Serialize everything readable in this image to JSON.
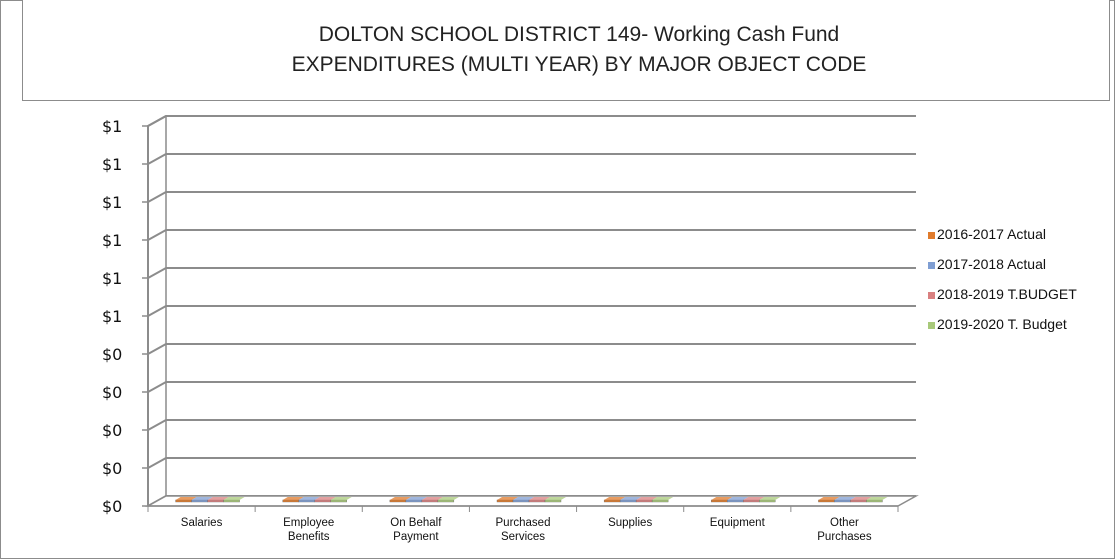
{
  "chart_data": {
    "type": "bar",
    "title": "DOLTON SCHOOL DISTRICT 149- Working Cash Fund",
    "subtitle": "EXPENDITURES (MULTI YEAR) BY MAJOR OBJECT CODE",
    "categories": [
      [
        "Salaries"
      ],
      [
        "Employee",
        "Benefits"
      ],
      [
        "On Behalf",
        "Payment"
      ],
      [
        "Purchased",
        "Services"
      ],
      [
        "Supplies"
      ],
      [
        "Equipment"
      ],
      [
        "Other",
        "Purchases"
      ]
    ],
    "y_tick_labels": [
      "$1",
      "$1",
      "$1",
      "$1",
      "$1",
      "$1",
      "$0",
      "$0",
      "$0",
      "$0",
      "$0"
    ],
    "ylim": [
      0,
      1
    ],
    "grid": true,
    "legend_position": "right",
    "three_d": true,
    "series": [
      {
        "name": "2016-2017 Actual",
        "color": "#e07b2c",
        "values": [
          0,
          0,
          0,
          0,
          0,
          0,
          0
        ]
      },
      {
        "name": "2017-2018 Actual",
        "color": "#7f9ed3",
        "values": [
          0,
          0,
          0,
          0,
          0,
          0,
          0
        ]
      },
      {
        "name": "2018-2019 T.BUDGET",
        "color": "#d98080",
        "values": [
          0,
          0,
          0,
          0,
          0,
          0,
          0
        ]
      },
      {
        "name": "2019-2020 T. Budget",
        "color": "#a8c97a",
        "values": [
          0,
          0,
          0,
          0,
          0,
          0,
          0
        ]
      }
    ]
  }
}
